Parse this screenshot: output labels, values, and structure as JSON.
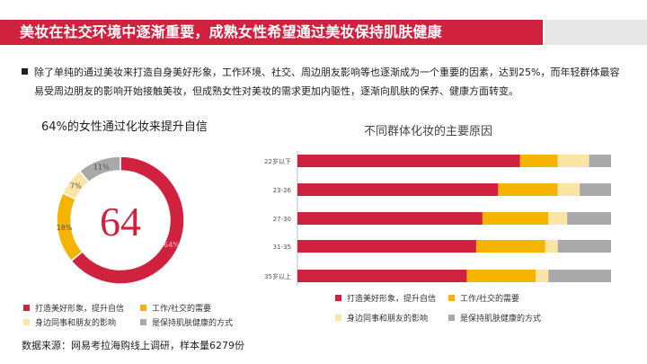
{
  "header": {
    "title": "美妆在社交环境中逐渐重要，成熟女性希望通过美妆保持肌肤健康"
  },
  "intro": {
    "text": "除了单纯的通过美妆来打造自身美好形象，工作环境、社交、周边朋友影响等也逐渐成为一个重要的因素，达到25%，而年轻群体最容易受周边朋友的影响开始接触美妆，但成熟女性对美妆的需求更加内驱性，逐渐向肌肤的保养、健康方面转变。"
  },
  "colors": {
    "accent": "#d0223e",
    "s1": "#d0223e",
    "s2": "#f5b400",
    "s3": "#fbe5a5",
    "s4": "#a9a9a9"
  },
  "source": "数据来源：网易考拉海购线上调研，样本量6279份",
  "chart_data": [
    {
      "type": "pie",
      "title": "64%的女性通过化妆来提升自信",
      "center_label": "64",
      "categories": [
        "打造美好形象，提升自信",
        "工作/社交的需要",
        "身边同事和朋友的影响",
        "是保持肌肤健康的方式"
      ],
      "values": [
        64,
        18,
        7,
        11
      ],
      "value_labels": [
        "64%",
        "18%",
        "7%",
        "11%"
      ]
    },
    {
      "type": "bar",
      "stacked": true,
      "orientation": "horizontal",
      "title": "不同群体化妆的主要原因",
      "categories": [
        "22岁以下",
        "23-26",
        "27-30",
        "31-35",
        "35岁以上"
      ],
      "series": [
        {
          "name": "打造美好形象，提升自信",
          "values": [
            71,
            64,
            59,
            57,
            54
          ]
        },
        {
          "name": "工作/社交的需要",
          "values": [
            12,
            19,
            21,
            22,
            22
          ]
        },
        {
          "name": "身边同事和朋友的影响",
          "values": [
            10,
            7,
            6,
            4,
            4
          ]
        },
        {
          "name": "是保持肌肤健康的方式",
          "values": [
            7,
            10,
            14,
            17,
            20
          ]
        }
      ],
      "xlim": [
        0,
        100
      ]
    }
  ]
}
